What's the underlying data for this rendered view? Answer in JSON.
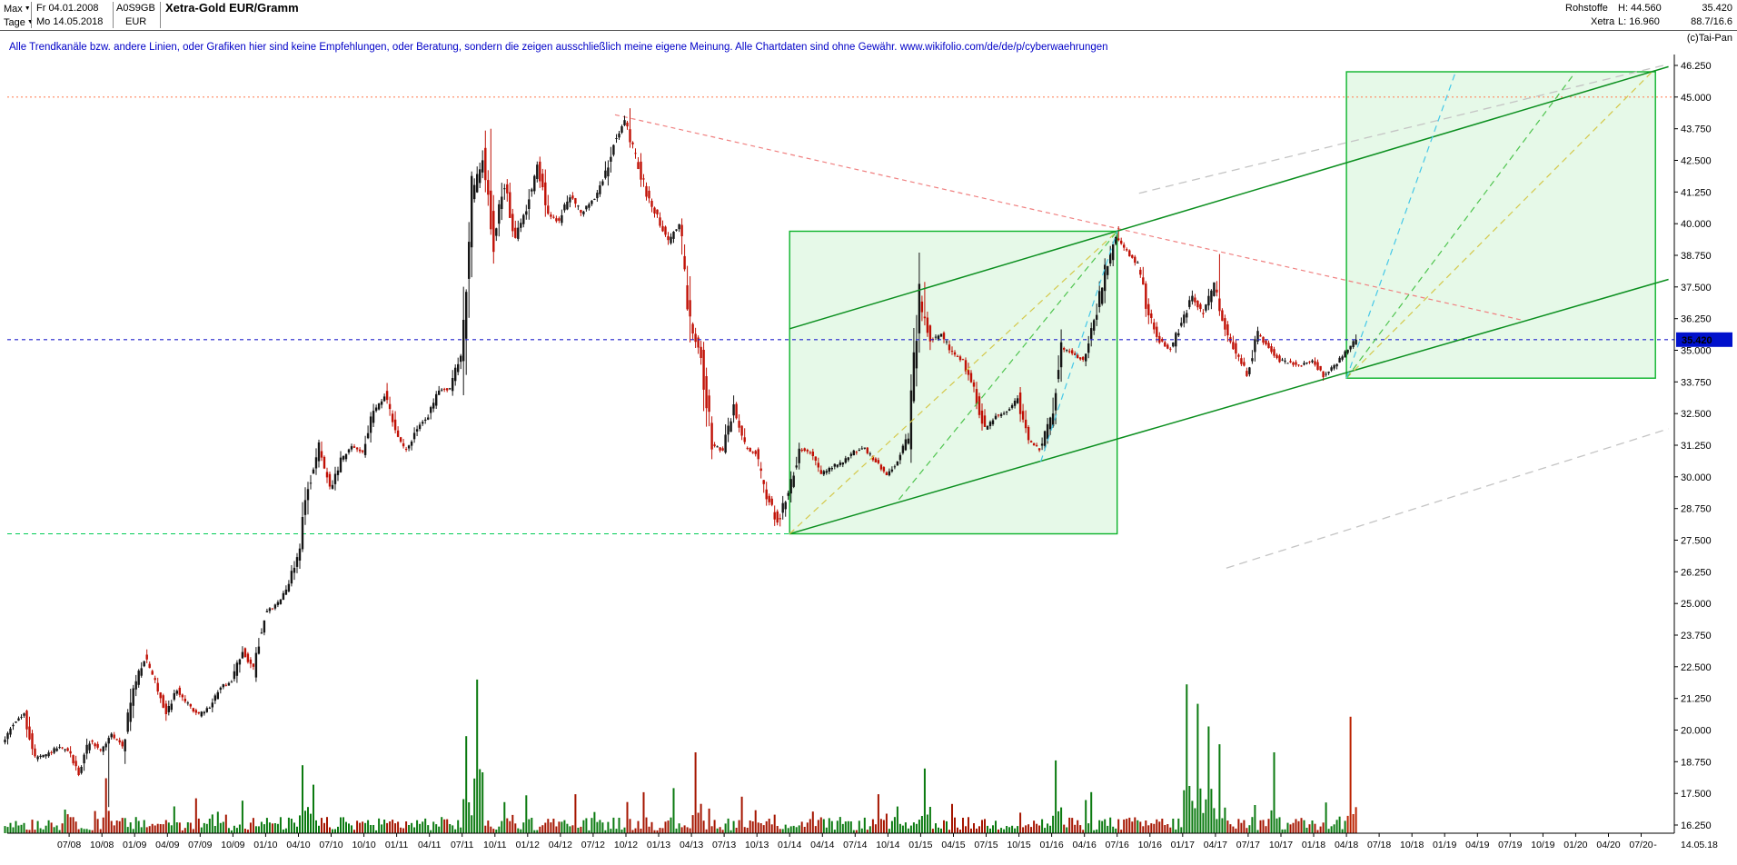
{
  "header": {
    "range_selector": "Max",
    "start_date": "Fr 04.01.2008",
    "wkn": "A0S9GB",
    "title": "Xetra-Gold EUR/Gramm",
    "period_selector": "Tage",
    "end_date": "Mo 14.05.2018",
    "currency": "EUR",
    "category": "Rohstoffe",
    "exchange": "Xetra",
    "high_label": "H: 44.560",
    "low_label": "L: 16.960",
    "last_price": "35.420",
    "range_stat": "88.7/16.6",
    "copyright": "(c)Tai-Pan"
  },
  "disclaimer": {
    "text": "Alle Trendkanäle bzw. andere Linien, oder Grafiken hier sind keine Empfehlungen, oder Beratung, sondern die zeigen ausschließlich meine eigene Meinung. Alle Chartdaten sind ohne Gewähr. ",
    "url": "www.wikifolio.com/de/de/p/cyberwaehrungen"
  },
  "axes": {
    "y_max": 46.25,
    "y_min": 16.25,
    "y_step": 1.25,
    "y_labels": [
      "46.250",
      "45.000",
      "43.750",
      "42.500",
      "41.250",
      "40.000",
      "38.750",
      "37.500",
      "36.250",
      "35.000",
      "33.750",
      "32.500",
      "31.250",
      "30.000",
      "28.750",
      "27.500",
      "26.250",
      "25.000",
      "23.750",
      "22.500",
      "21.250",
      "20.000",
      "18.750",
      "17.500",
      "16.250"
    ],
    "x_labels": [
      "07/08",
      "10/08",
      "01/09",
      "04/09",
      "07/09",
      "10/09",
      "01/10",
      "04/10",
      "07/10",
      "10/10",
      "01/11",
      "04/11",
      "07/11",
      "10/11",
      "01/12",
      "04/12",
      "07/12",
      "10/12",
      "01/13",
      "04/13",
      "07/13",
      "10/13",
      "01/14",
      "04/14",
      "07/14",
      "10/14",
      "01/15",
      "04/15",
      "07/15",
      "10/15",
      "01/16",
      "04/16",
      "07/16",
      "10/16",
      "01/17",
      "04/17",
      "07/17",
      "10/17",
      "01/18",
      "04/18",
      "07/18",
      "10/18",
      "01/19",
      "04/19",
      "07/19",
      "10/19",
      "01/20",
      "04/20",
      "07/20"
    ],
    "x_end_dash": "-",
    "x_end_label": "14.05.18"
  },
  "price_marker": {
    "value": 35.42,
    "label": "35.420",
    "color": "#0011cc"
  },
  "chart_data": {
    "type": "candlestick",
    "title": "Xetra-Gold EUR/Gramm",
    "start_month": "01/08",
    "end_date": "14.05.2018",
    "ylim": [
      16.25,
      46.25
    ],
    "high": 44.56,
    "low": 16.96,
    "last": 35.42,
    "monthly_close": [
      19.4,
      20.3,
      20.6,
      18.9,
      19.0,
      19.3,
      19.2,
      18.3,
      19.6,
      19.2,
      19.8,
      19.4,
      21.6,
      22.9,
      21.9,
      20.7,
      21.6,
      21.0,
      20.6,
      20.9,
      21.7,
      21.9,
      23.2,
      22.4,
      24.6,
      24.9,
      25.6,
      26.8,
      29.6,
      31.2,
      29.4,
      30.6,
      31.2,
      31.0,
      32.6,
      33.2,
      31.8,
      31.0,
      31.9,
      32.4,
      33.4,
      33.5,
      34.8,
      41.0,
      42.6,
      39.3,
      41.6,
      39.4,
      40.6,
      42.4,
      40.3,
      40.1,
      41.2,
      40.4,
      40.9,
      41.6,
      43.3,
      44.0,
      42.6,
      41.2,
      40.3,
      39.3,
      40.0,
      35.9,
      34.8,
      31.3,
      31.0,
      32.8,
      31.2,
      30.9,
      29.3,
      28.2,
      29.4,
      31.1,
      31.0,
      30.1,
      30.4,
      30.6,
      31.0,
      31.1,
      30.6,
      30.1,
      30.6,
      31.6,
      36.9,
      35.4,
      35.6,
      34.9,
      34.6,
      33.4,
      31.9,
      32.4,
      32.6,
      33.1,
      31.4,
      31.1,
      32.2,
      35.1,
      34.9,
      34.6,
      36.1,
      38.1,
      39.4,
      38.9,
      38.4,
      36.4,
      35.4,
      35.0,
      36.1,
      37.1,
      36.4,
      37.6,
      35.9,
      34.9,
      34.1,
      35.6,
      35.1,
      34.6,
      34.5,
      34.4,
      34.6,
      34.0,
      34.4,
      34.9,
      35.42
    ],
    "wick_events": [
      {
        "m": 9.5,
        "low": 16.96
      },
      {
        "m": 44.4,
        "high": 43.75
      },
      {
        "m": 57.3,
        "high": 44.56
      },
      {
        "m": 84.2,
        "high": 37.7
      },
      {
        "m": 102.0,
        "high": 39.9
      },
      {
        "m": 111.3,
        "high": 38.8
      }
    ],
    "hlines": [
      {
        "name": "resistance-45.000",
        "price": 45.0,
        "m1": 0.33,
        "m2": 153,
        "color": "#ff8860",
        "dash": "2,3",
        "layer": "back"
      },
      {
        "name": "support-27.750",
        "price": 27.75,
        "m1": 0.33,
        "m2": 72,
        "color": "#00cc55",
        "dash": "5,4",
        "layer": "back"
      },
      {
        "name": "last-price-35.420",
        "price": 35.42,
        "m1": 0.33,
        "m2": 153,
        "color": "#2222cc",
        "dash": "4,4",
        "layer": "front"
      }
    ],
    "trendlines": [
      {
        "name": "declining-resistance",
        "m1": 56,
        "p1": 44.3,
        "m2": 139,
        "p2": 36.2,
        "color": "#f08080",
        "dash": "5,4",
        "width": 1.2,
        "layer": "back"
      },
      {
        "name": "gray-channel-upper",
        "m1": 104,
        "p1": 41.2,
        "m2": 152.5,
        "p2": 46.3,
        "color": "#c4c4c4",
        "dash": "9,6",
        "width": 1.3,
        "layer": "back"
      },
      {
        "name": "gray-channel-lower",
        "m1": 112,
        "p1": 26.4,
        "m2": 152.5,
        "p2": 31.9,
        "color": "#c4c4c4",
        "dash": "9,6",
        "width": 1.3,
        "layer": "back"
      },
      {
        "name": "trend-channel-lower",
        "m1": 72,
        "p1": 27.75,
        "m2": 152.5,
        "p2": 37.8,
        "color": "#0b8f1f",
        "width": 1.5,
        "layer": "front"
      },
      {
        "name": "trend-channel-upper",
        "m1": 72,
        "p1": 35.85,
        "m2": 152.5,
        "p2": 46.2,
        "color": "#0b8f1f",
        "width": 1.5,
        "layer": "front"
      },
      {
        "name": "fan-yellow-1",
        "m1": 72,
        "p1": 27.75,
        "m2": 102,
        "p2": 39.7,
        "color": "#d4c84a",
        "dash": "7,5",
        "width": 1.2,
        "layer": "front"
      },
      {
        "name": "fan-green-1",
        "m1": 82,
        "p1": 29.1,
        "m2": 102,
        "p2": 39.7,
        "color": "#4ec44e",
        "dash": "7,5",
        "width": 1.2,
        "layer": "front"
      },
      {
        "name": "fan-cyan-1",
        "m1": 95,
        "p1": 30.6,
        "m2": 102,
        "p2": 39.7,
        "color": "#45c8e8",
        "dash": "7,5",
        "width": 1.2,
        "layer": "front"
      },
      {
        "name": "fan-yellow-2",
        "m1": 123,
        "p1": 33.9,
        "m2": 151,
        "p2": 46.0,
        "color": "#d4c84a",
        "dash": "7,5",
        "width": 1.2,
        "layer": "front"
      },
      {
        "name": "fan-green-2",
        "m1": 123,
        "p1": 33.9,
        "m2": 144,
        "p2": 46.0,
        "color": "#4ec44e",
        "dash": "7,5",
        "width": 1.2,
        "layer": "front"
      },
      {
        "name": "fan-cyan-2",
        "m1": 123,
        "p1": 33.9,
        "m2": 133,
        "p2": 46.0,
        "color": "#45c8e8",
        "dash": "7,5",
        "width": 1.2,
        "layer": "front"
      }
    ],
    "boxes": [
      {
        "name": "trend-box-2014-2016",
        "m1": 72,
        "p1": 27.75,
        "m2": 102,
        "p2": 39.7
      },
      {
        "name": "trend-box-2018-2020",
        "m1": 123,
        "p1": 33.9,
        "m2": 151.3,
        "p2": 46.0
      }
    ],
    "volume_spikes": [
      {
        "m": 9,
        "h": 0.34,
        "c": "#a51500"
      },
      {
        "m": 27,
        "h": 0.42,
        "c": "#0b7a10"
      },
      {
        "m": 28,
        "h": 0.3,
        "c": "#0b7a10"
      },
      {
        "m": 42,
        "h": 0.6,
        "c": "#0b7a10"
      },
      {
        "m": 43,
        "h": 0.95,
        "c": "#0b7a10"
      },
      {
        "m": 63,
        "h": 0.5,
        "c": "#a51500"
      },
      {
        "m": 84,
        "h": 0.4,
        "c": "#0b7a10"
      },
      {
        "m": 96,
        "h": 0.45,
        "c": "#0b7a10"
      },
      {
        "m": 108,
        "h": 0.92,
        "c": "#0b7a10"
      },
      {
        "m": 109,
        "h": 0.8,
        "c": "#0b7a10"
      },
      {
        "m": 110,
        "h": 0.66,
        "c": "#0b7a10"
      },
      {
        "m": 111,
        "h": 0.55,
        "c": "#0b7a10"
      },
      {
        "m": 116,
        "h": 0.5,
        "c": "#0b7a10"
      },
      {
        "m": 123,
        "h": 0.72,
        "c": "#bb2200"
      }
    ],
    "colors": {
      "candle_up": "#151515",
      "candle_down": "#c01005",
      "volume_up": "#0b7a10",
      "volume_down": "#a51500",
      "box_fill": "rgba(100,220,110,0.16)",
      "box_border": "#0bb32a"
    }
  }
}
